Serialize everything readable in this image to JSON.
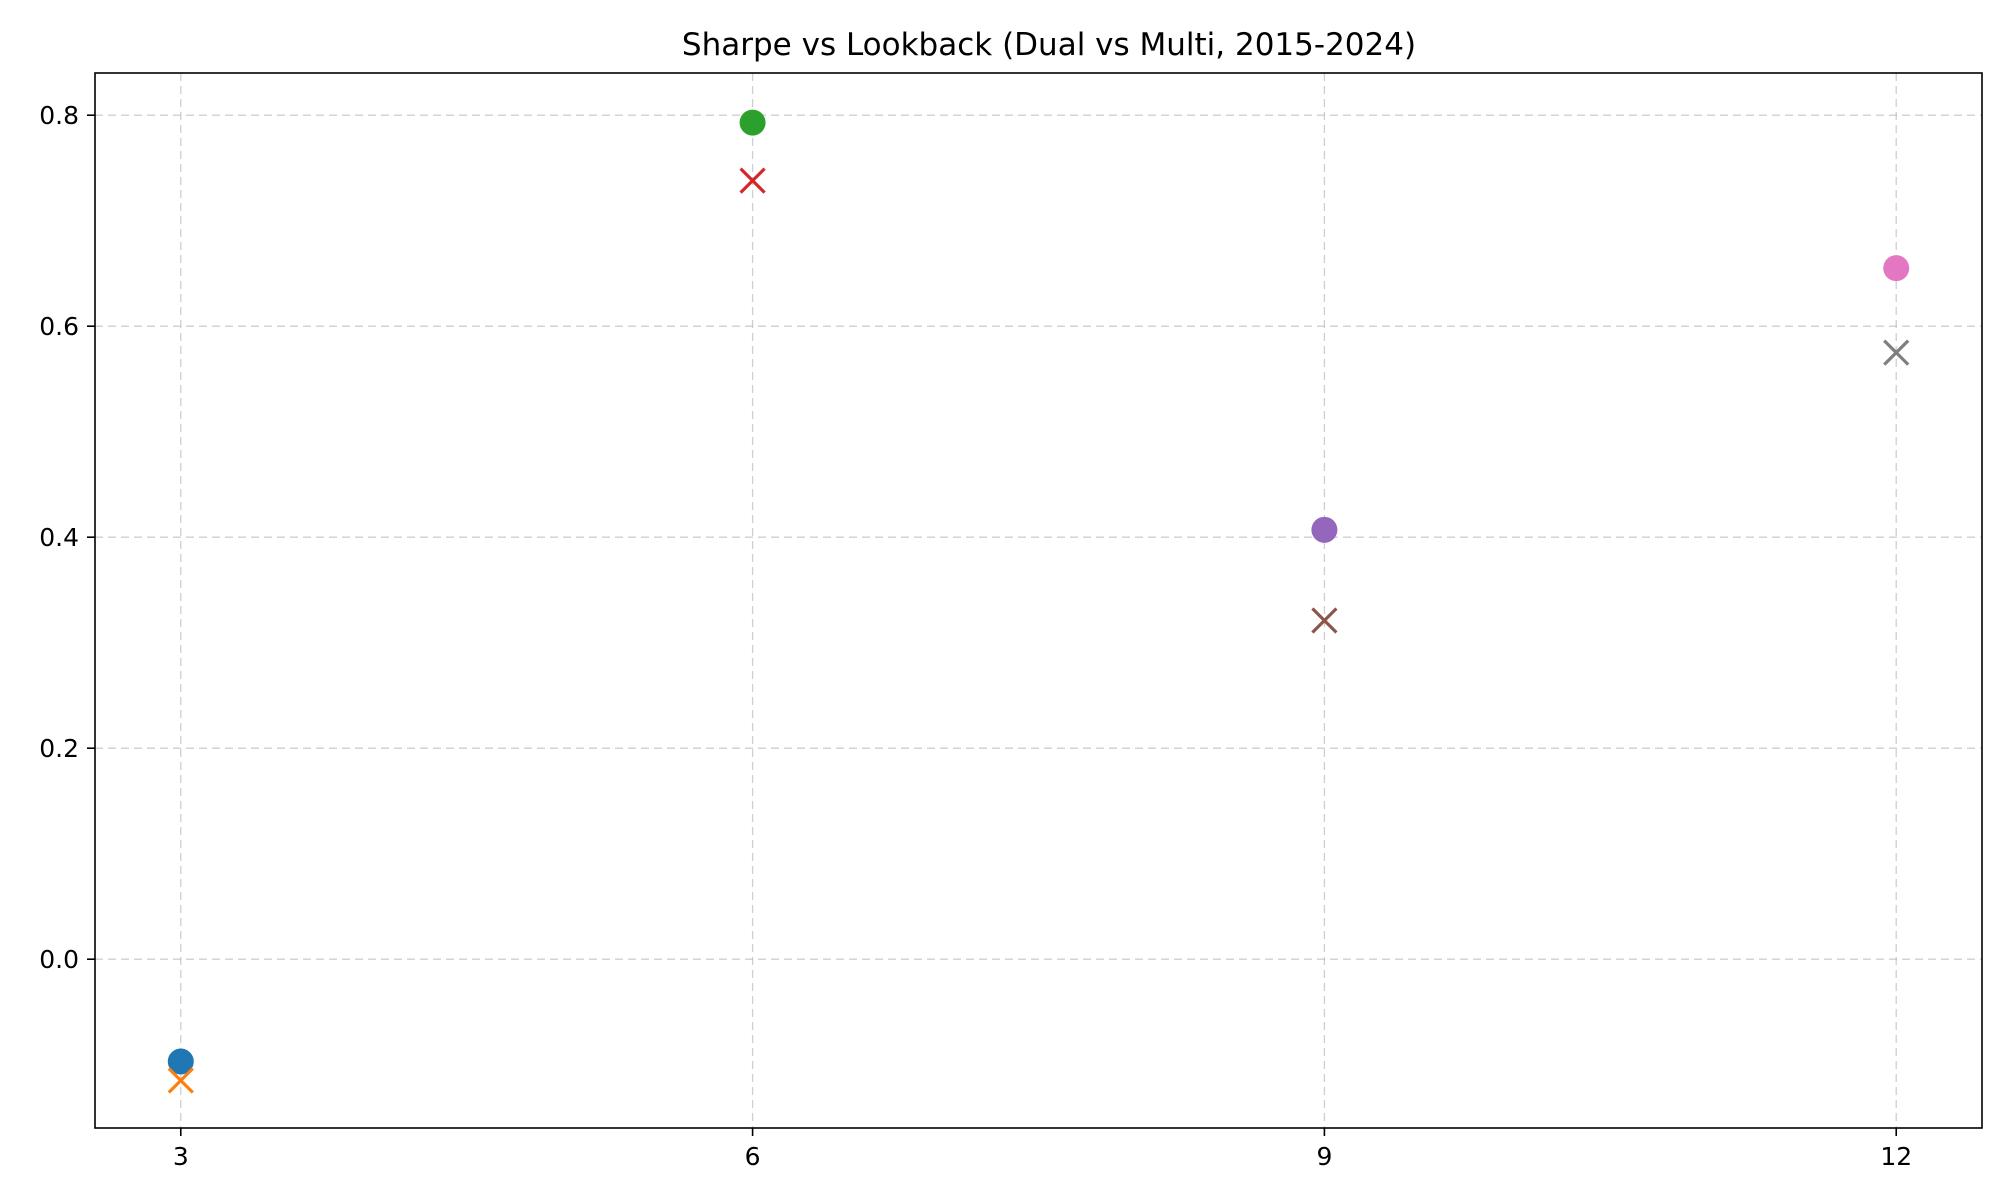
{
  "chart_data": {
    "type": "scatter",
    "title": "Sharpe vs Lookback (Dual vs Multi, 2015-2024)",
    "xlabel": "",
    "ylabel": "",
    "x_ticks": [
      3,
      6,
      9,
      12
    ],
    "x_tick_labels": [
      "3",
      "6",
      "9",
      "12"
    ],
    "y_ticks": [
      0.0,
      0.2,
      0.4,
      0.6,
      0.8
    ],
    "y_tick_labels": [
      "0.0",
      "0.2",
      "0.4",
      "0.6",
      "0.8"
    ],
    "xlim": [
      2.55,
      12.45
    ],
    "ylim": [
      -0.16,
      0.84
    ],
    "grid": true,
    "legend": "none",
    "series": [
      {
        "marker": "circle",
        "color": "#1f77b4",
        "points": [
          {
            "x": 3,
            "y": -0.097
          }
        ]
      },
      {
        "marker": "x",
        "color": "#ff7f0e",
        "points": [
          {
            "x": 3,
            "y": -0.115
          }
        ]
      },
      {
        "marker": "circle",
        "color": "#2ca02c",
        "points": [
          {
            "x": 6,
            "y": 0.793
          }
        ]
      },
      {
        "marker": "x",
        "color": "#d62728",
        "points": [
          {
            "x": 6,
            "y": 0.738
          }
        ]
      },
      {
        "marker": "circle",
        "color": "#9467bd",
        "points": [
          {
            "x": 9,
            "y": 0.407
          }
        ]
      },
      {
        "marker": "x",
        "color": "#8c564b",
        "points": [
          {
            "x": 9,
            "y": 0.321
          }
        ]
      },
      {
        "marker": "circle",
        "color": "#e377c2",
        "points": [
          {
            "x": 12,
            "y": 0.655
          }
        ]
      },
      {
        "marker": "x",
        "color": "#7f7f7f",
        "points": [
          {
            "x": 12,
            "y": 0.575
          }
        ]
      }
    ]
  }
}
